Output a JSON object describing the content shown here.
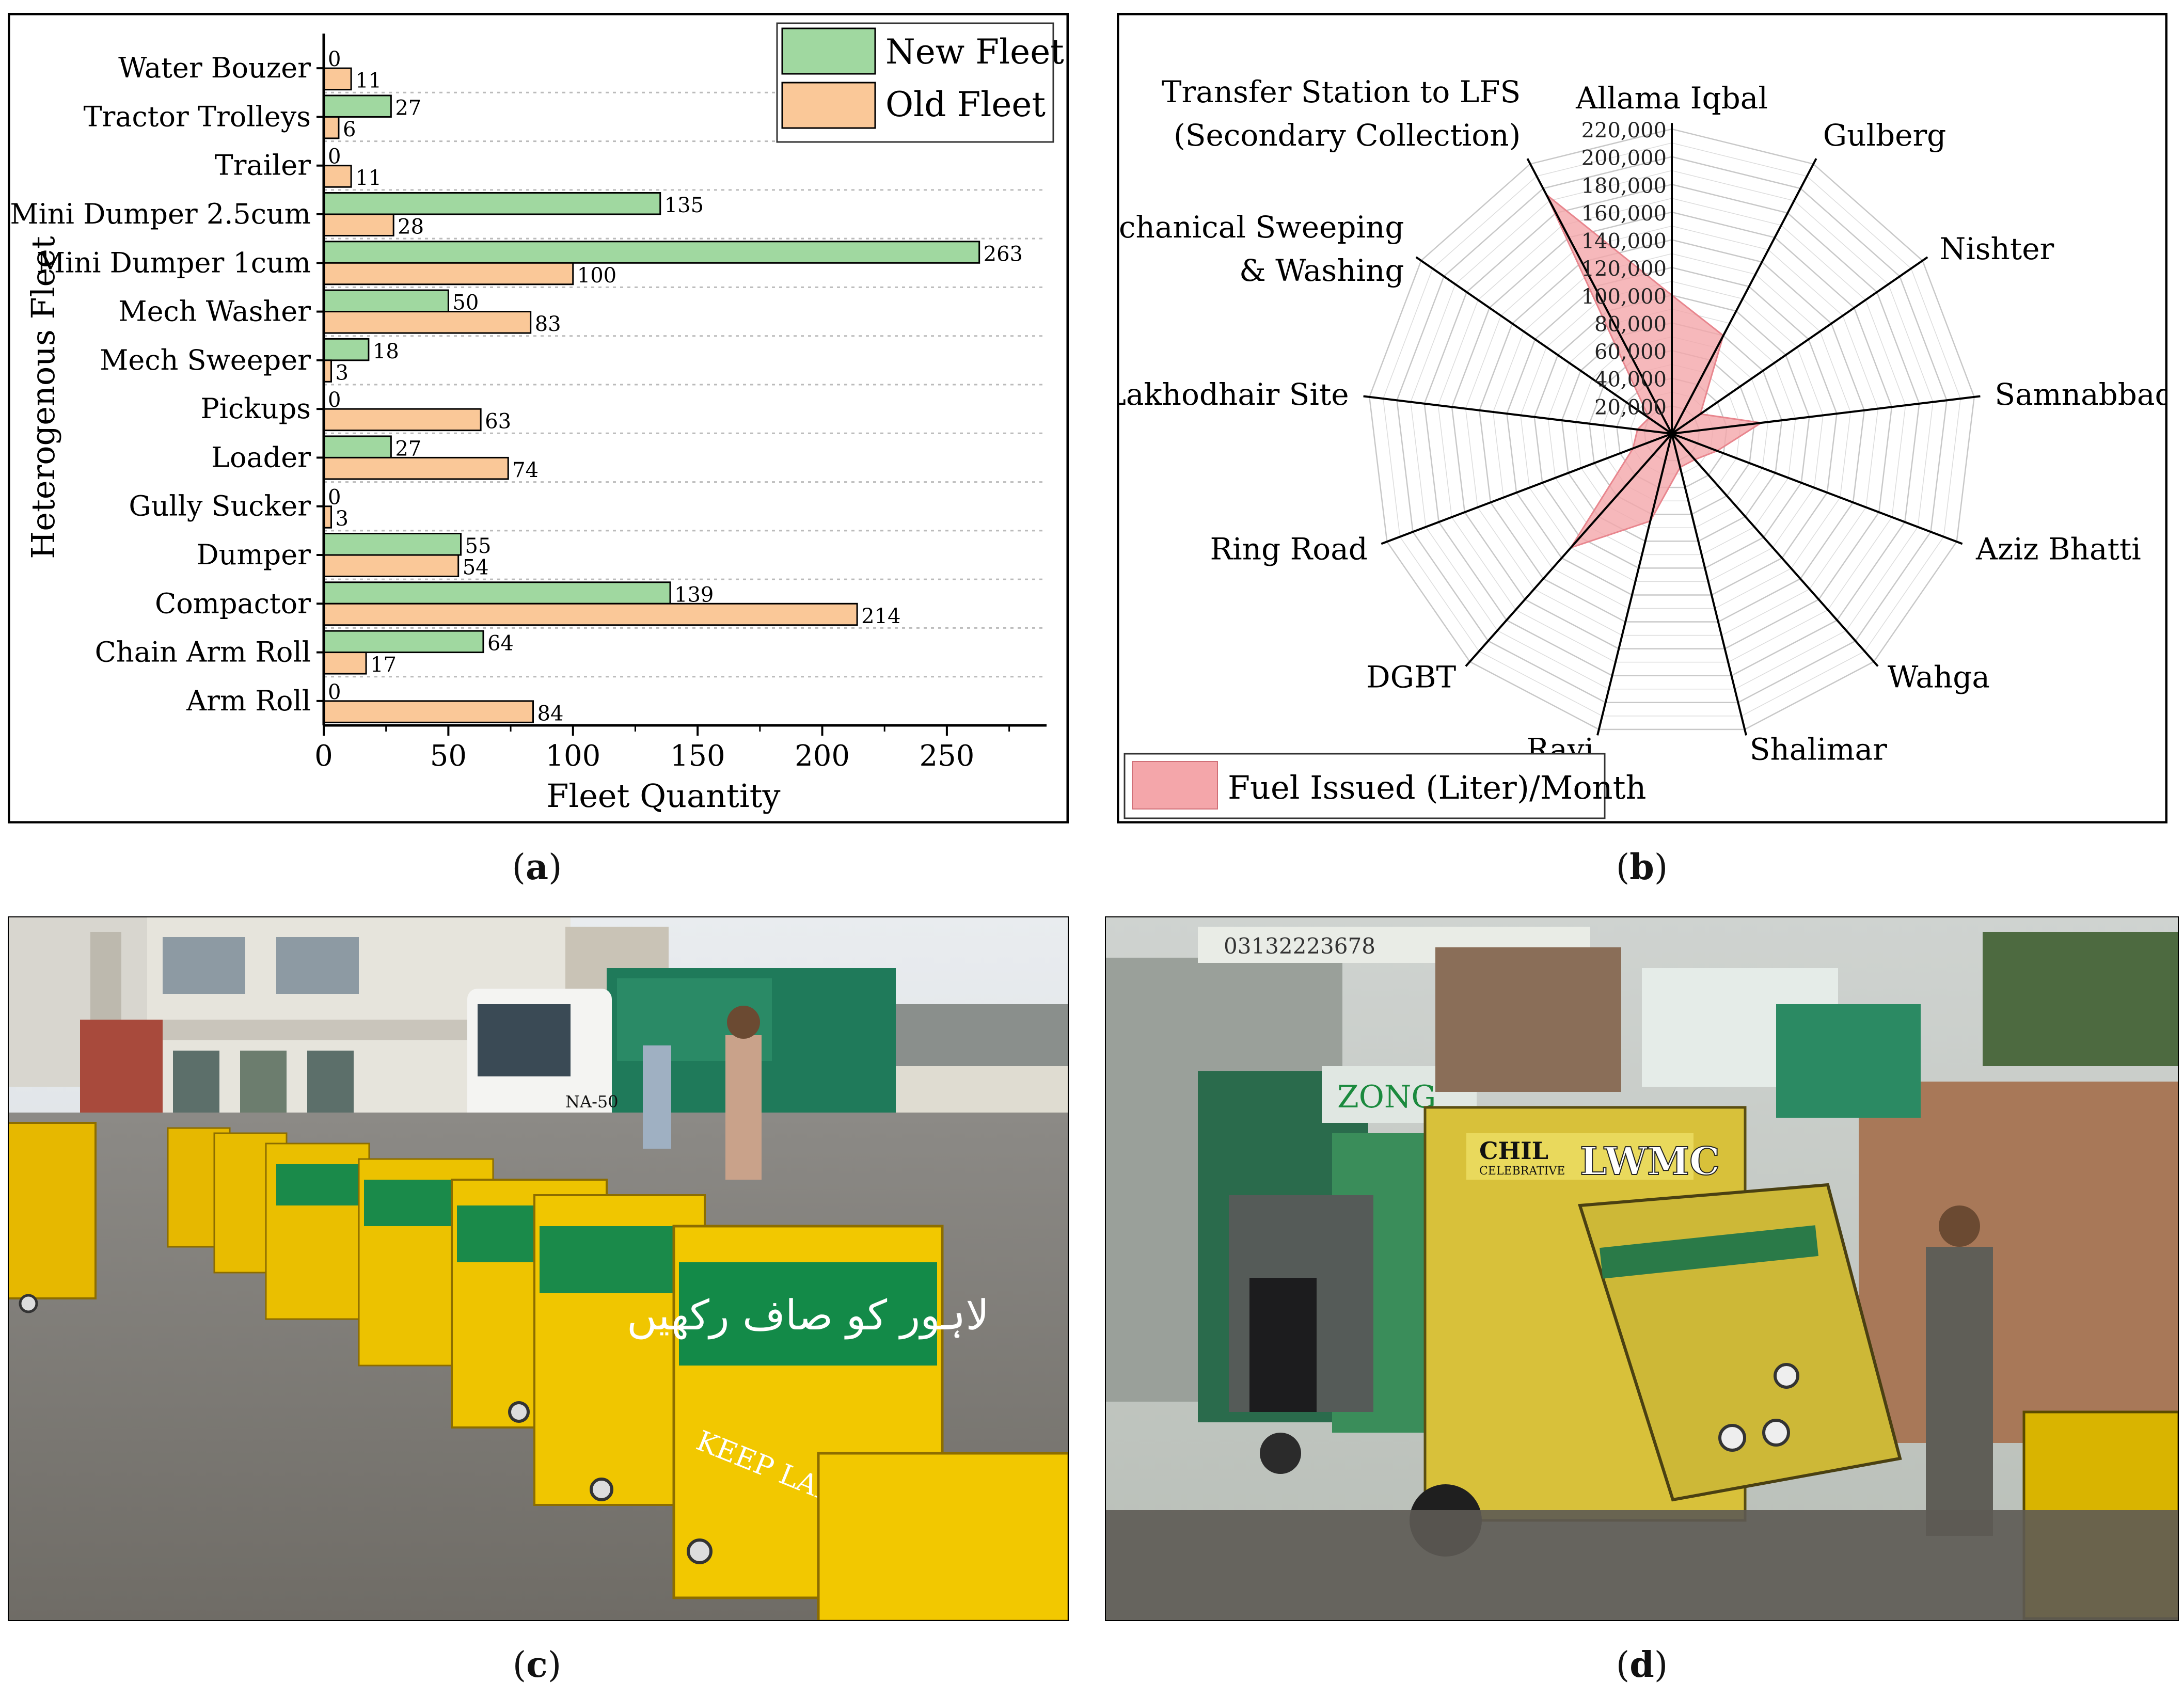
{
  "captions": {
    "a": "a",
    "b": "b",
    "c": "c",
    "d": "d"
  },
  "chart_data": [
    {
      "type": "bar",
      "orientation": "horizontal",
      "categories": [
        "Water Bouzer",
        "Tractor Trolleys",
        "Trailer",
        "Mini Dumper 2.5cum",
        "Mini Dumper 1cum",
        "Mech Washer",
        "Mech Sweeper",
        "Pickups",
        "Loader",
        "Gully Sucker",
        "Dumper",
        "Compactor",
        "Chain Arm Roll",
        "Arm Roll"
      ],
      "series": [
        {
          "name": "New Fleet",
          "color": "#a0d8a0",
          "values": [
            0,
            27,
            0,
            135,
            263,
            50,
            18,
            0,
            27,
            0,
            55,
            139,
            64,
            0
          ]
        },
        {
          "name": "Old Fleet",
          "color": "#fac898",
          "values": [
            11,
            6,
            11,
            28,
            100,
            83,
            3,
            63,
            74,
            3,
            54,
            214,
            17,
            84
          ]
        }
      ],
      "xlabel": "Fleet Quantity",
      "ylabel": "Heterogenous Fleet",
      "xlim": [
        0,
        290
      ],
      "xticks": [
        "0",
        "50",
        "100",
        "150",
        "200",
        "250"
      ],
      "legend_position": "top-right",
      "grid": "horizontal dotted"
    },
    {
      "type": "radar",
      "categories": [
        "Allama Iqbal",
        "Gulberg",
        "Nishter",
        "Samnabbad",
        "Aziz Bhatti",
        "Wahga",
        "Shalimar",
        "Ravi",
        "DGBT",
        "Ring Road",
        "Lakhodhair Site",
        "Mechanical Sweeping & Washing",
        "Transfer Station to LFS (Secondary Collection)"
      ],
      "label_lines": [
        [
          "Allama Iqbal"
        ],
        [
          "Gulberg"
        ],
        [
          "Nishter"
        ],
        [
          "Samnabbad"
        ],
        [
          "Aziz Bhatti"
        ],
        [
          "Wahga"
        ],
        [
          "Shalimar"
        ],
        [
          "Ravi"
        ],
        [
          "DGBT"
        ],
        [
          "Ring Road"
        ],
        [
          "Lakhodhair Site"
        ],
        [
          "Mechanical Sweeping",
          "& Washing"
        ],
        [
          "Transfer Station to LFS",
          "(Secondary Collection)"
        ]
      ],
      "series": [
        {
          "name": "Fuel Issued (Liter)/Month",
          "color": "#f4a6aa",
          "values": [
            100000,
            80000,
            25000,
            65000,
            35000,
            25000,
            25000,
            65000,
            110000,
            30000,
            25000,
            20000,
            195000
          ]
        }
      ],
      "rlim": [
        0,
        220000
      ],
      "ticks": [
        "20,000",
        "40,000",
        "60,000",
        "80,000",
        "100,000",
        "120,000",
        "140,000",
        "160,000",
        "180,000",
        "200,000",
        "220,000"
      ],
      "legend_position": "bottom-left"
    }
  ],
  "photo_c": {
    "bin_text_urdu": "لاہور کو صاف رکھیں",
    "bin_text_en": "KEEP LAHORE CLEAN",
    "truck_text": "NA-50"
  },
  "photo_d": {
    "shop_phone": "03132223678",
    "zong_sign": "ZONG",
    "truck_brand": "CHIL",
    "truck_sub": "CELEBRATIVE",
    "truck_label": "LWMC"
  }
}
